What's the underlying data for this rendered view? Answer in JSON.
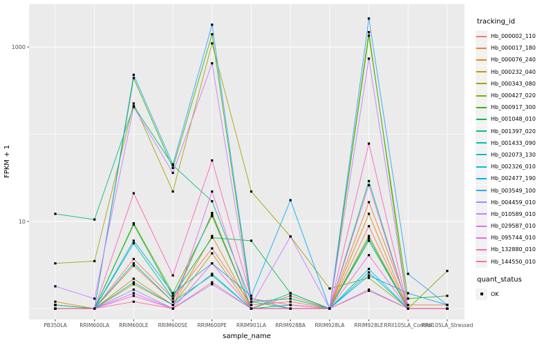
{
  "figure": {
    "legend": {
      "tracking_title": "tracking_id",
      "quant_title": "quant_status",
      "quant_ok_label": "OK"
    }
  },
  "chart_data": {
    "type": "line",
    "title": "",
    "xlabel": "sample_name",
    "ylabel": "FPKM + 1",
    "y_scale": "log10",
    "ylim": [
      0.75,
      3100
    ],
    "y_tick_values": [
      10,
      1000
    ],
    "y_tick_labels": [
      "10",
      "1000"
    ],
    "y_gridlines_major": [
      10,
      1000
    ],
    "y_gridlines_minor": [
      1,
      100
    ],
    "grid": true,
    "legend_position": "right",
    "point_shape": "filled-square",
    "point_color": "#000000",
    "panel_background": "#EBEBEB",
    "gridline_color": "#FFFFFF",
    "categories": [
      "PB350LA",
      "RRIM600LA",
      "RRIM600LE",
      "RRIM600SE",
      "RRIM600PE",
      "RRIM901LA",
      "RRIM928BA",
      "RRIM928LA",
      "RRIM928LE",
      "RRII105LA_Control",
      "RRII105LA_Stressed"
    ],
    "series": [
      {
        "name": "Hb_000002_110",
        "color": "#F8766D",
        "values": [
          1.1,
          1.0,
          3.7,
          1.3,
          4.9,
          1.1,
          1.2,
          1.0,
          8.8,
          1.0,
          1.0
        ]
      },
      {
        "name": "Hb_000017_180",
        "color": "#EA8331",
        "values": [
          1.1,
          1.0,
          3.1,
          1.2,
          12.5,
          1.0,
          1.4,
          1.0,
          16.6,
          1.1,
          1.1
        ]
      },
      {
        "name": "Hb_000076_240",
        "color": "#D89000",
        "values": [
          1.2,
          1.0,
          2.2,
          1.1,
          6.8,
          1.0,
          1.1,
          1.0,
          12.2,
          1.0,
          1.0
        ]
      },
      {
        "name": "Hb_000232_040",
        "color": "#C09B00",
        "values": [
          1.1,
          1.0,
          1.9,
          1.1,
          4.3,
          1.0,
          1.0,
          1.0,
          6.8,
          1.0,
          1.0
        ]
      },
      {
        "name": "Hb_000343_080",
        "color": "#A3A500",
        "values": [
          3.3,
          3.5,
          225,
          22,
          1100,
          22,
          6.7,
          1.7,
          2.25,
          1.0,
          1.0
        ]
      },
      {
        "name": "Hb_000427_020",
        "color": "#7CAE00",
        "values": [
          1.1,
          1.0,
          9.5,
          1.5,
          11.5,
          1.0,
          1.0,
          1.0,
          1480,
          1.0,
          2.7
        ]
      },
      {
        "name": "Hb_000917_300",
        "color": "#39B600",
        "values": [
          1.0,
          1.0,
          440,
          41,
          1400,
          1.2,
          1.0,
          1.0,
          1350,
          1.3,
          1.4
        ]
      },
      {
        "name": "Hb_001048_010",
        "color": "#00BB4E",
        "values": [
          1.0,
          1.0,
          9.2,
          1.4,
          6.5,
          6.0,
          1.5,
          1.0,
          6.0,
          1.0,
          1.0
        ]
      },
      {
        "name": "Hb_001397_020",
        "color": "#00BF7D",
        "values": [
          12.2,
          10.5,
          210,
          44,
          17,
          1.2,
          1.3,
          1.0,
          29,
          1.0,
          1.0
        ]
      },
      {
        "name": "Hb_001433_090",
        "color": "#00C1A3",
        "values": [
          1.1,
          1.0,
          5.6,
          1.3,
          12.0,
          1.0,
          1.5,
          1.0,
          6.4,
          1.0,
          1.0
        ]
      },
      {
        "name": "Hb_002073_130",
        "color": "#00BFC4",
        "values": [
          1.0,
          1.0,
          3.3,
          1.2,
          2.4,
          1.0,
          1.1,
          1.0,
          2.85,
          1.0,
          1.0
        ]
      },
      {
        "name": "Hb_002326_010",
        "color": "#00BAE0",
        "values": [
          1.0,
          1.0,
          2.0,
          1.1,
          2.5,
          1.0,
          1.0,
          1.0,
          2.6,
          1.0,
          1.0
        ]
      },
      {
        "name": "Hb_002477_190",
        "color": "#00B0F6",
        "values": [
          1.0,
          1.0,
          6.0,
          1.5,
          3.3,
          1.4,
          17.5,
          1.0,
          2.4,
          1.5,
          1.1
        ]
      },
      {
        "name": "Hb_003549_100",
        "color": "#35A2FF",
        "values": [
          1.0,
          1.0,
          480,
          45,
          1800,
          1.3,
          1.0,
          1.0,
          2120,
          2.5,
          1.1
        ]
      },
      {
        "name": "Hb_004459_010",
        "color": "#9590FF",
        "values": [
          1.0,
          1.0,
          1.65,
          1.0,
          1.9,
          1.0,
          1.0,
          1.0,
          1.65,
          1.0,
          1.0
        ]
      },
      {
        "name": "Hb_010589_010",
        "color": "#C77CFF",
        "values": [
          1.8,
          1.3,
          205,
          36,
          650,
          1.1,
          6.7,
          1.0,
          735,
          1.0,
          1.0
        ]
      },
      {
        "name": "Hb_029587_010",
        "color": "#E76BF3",
        "values": [
          1.0,
          1.0,
          1.5,
          1.0,
          22,
          1.0,
          1.0,
          1.0,
          26,
          1.0,
          1.0
        ]
      },
      {
        "name": "Hb_095744_010",
        "color": "#FA62DB",
        "values": [
          1.0,
          1.0,
          1.4,
          1.0,
          3.3,
          1.0,
          1.0,
          1.0,
          4.1,
          1.0,
          1.0
        ]
      },
      {
        "name": "Hb_132880_010",
        "color": "#FF62BC",
        "values": [
          1.0,
          1.0,
          21,
          2.4,
          50,
          1.3,
          1.1,
          1.0,
          78,
          1.0,
          1.0
        ]
      },
      {
        "name": "Hb_144550_010",
        "color": "#FF6A98",
        "values": [
          1.0,
          1.0,
          1.2,
          1.0,
          2.0,
          1.0,
          1.0,
          1.0,
          1.6,
          1.0,
          1.0
        ]
      }
    ]
  }
}
